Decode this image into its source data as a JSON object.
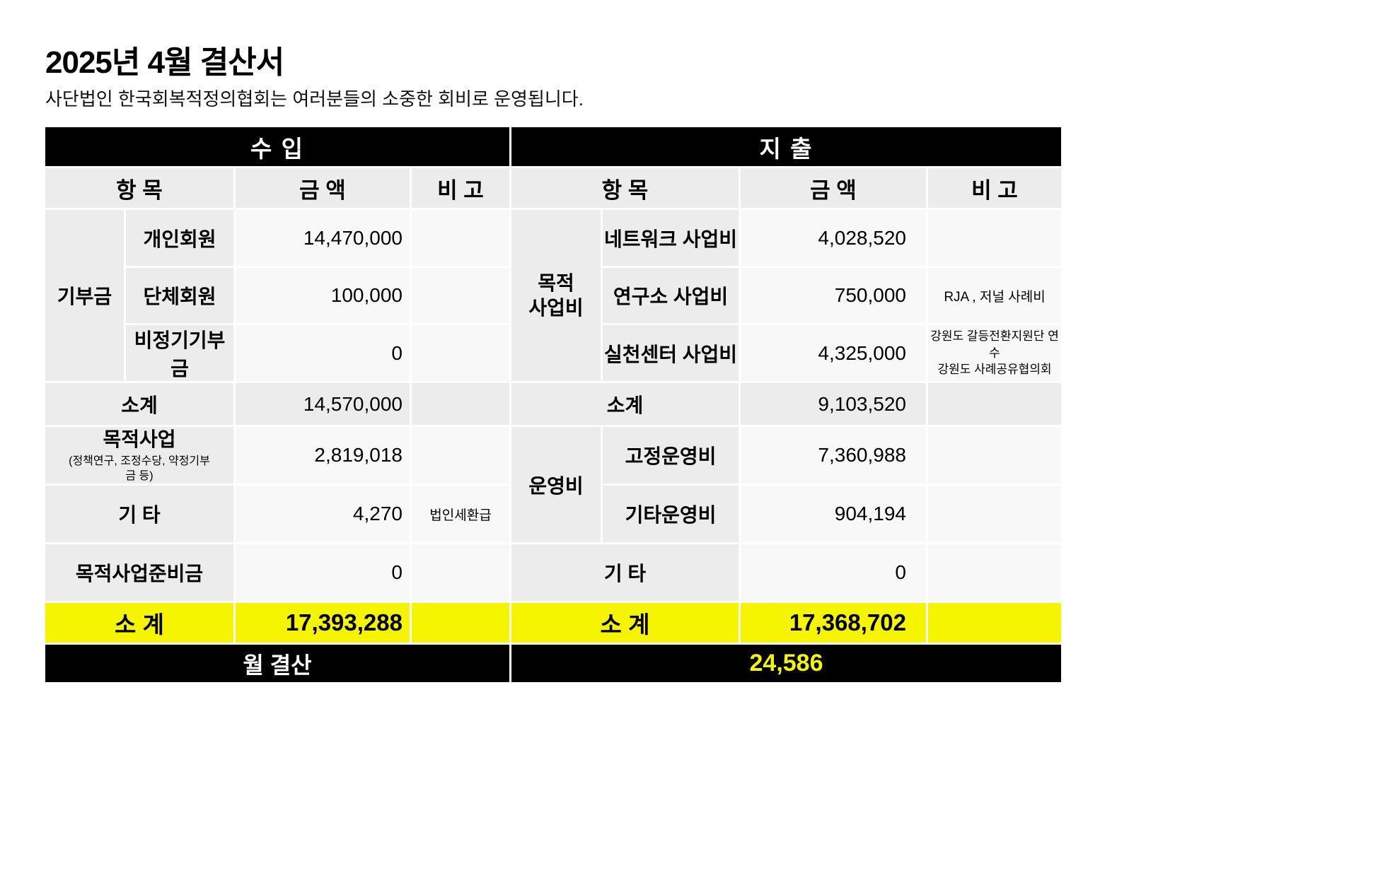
{
  "page": {
    "title": "2025년 4월 결산서",
    "subtitle": "사단법인 한국회복적정의협회는 여러분들의 소중한 회비로 운영됩니다."
  },
  "colors": {
    "header_black": "#000000",
    "cell_gray": "#ececec",
    "accent_yellow": "#f5f500"
  },
  "income": {
    "section": "수 입",
    "headers": {
      "item": "항 목",
      "amount": "금 액",
      "note": "비 고"
    },
    "donation": {
      "group": "기부금",
      "individual": {
        "label": "개인회원",
        "amount": "14,470,000"
      },
      "org": {
        "label": "단체회원",
        "amount": "100,000"
      },
      "irregular": {
        "label": "비정기기부금",
        "amount": "0"
      }
    },
    "subtotal": {
      "label": "소계",
      "amount": "14,570,000"
    },
    "purpose": {
      "label": "목적사업",
      "sublabel": "(정책연구, 조정수당, 약정기부금 등)",
      "amount": "2,819,018"
    },
    "etc": {
      "label": "기 타",
      "amount": "4,270",
      "note": "법인세환급"
    },
    "reserve": {
      "label": "목적사업준비금",
      "amount": "0"
    },
    "total": {
      "label": "소 계",
      "amount": "17,393,288"
    }
  },
  "expense": {
    "section": "지 출",
    "headers": {
      "item": "항 목",
      "amount": "금 액",
      "note": "비 고"
    },
    "project": {
      "group_line1": "목적",
      "group_line2": "사업비",
      "network": {
        "label": "네트워크 사업비",
        "amount": "4,028,520"
      },
      "research": {
        "label": "연구소 사업비",
        "amount": "750,000",
        "note": "RJA , 저널 사례비"
      },
      "practice": {
        "label": "실천센터 사업비",
        "amount": "4,325,000",
        "note_line1": "강원도 갈등전환지원단 연수",
        "note_line2": "강원도 사례공유협의회"
      }
    },
    "subtotal": {
      "label": "소계",
      "amount": "9,103,520"
    },
    "operating": {
      "group": "운영비",
      "fixed": {
        "label": "고정운영비",
        "amount": "7,360,988"
      },
      "etc": {
        "label": "기타운영비",
        "amount": "904,194"
      }
    },
    "etc": {
      "label": "기 타",
      "amount": "0"
    },
    "total": {
      "label": "소 계",
      "amount": "17,368,702"
    }
  },
  "summary": {
    "label": "월 결산",
    "amount": "24,586"
  }
}
